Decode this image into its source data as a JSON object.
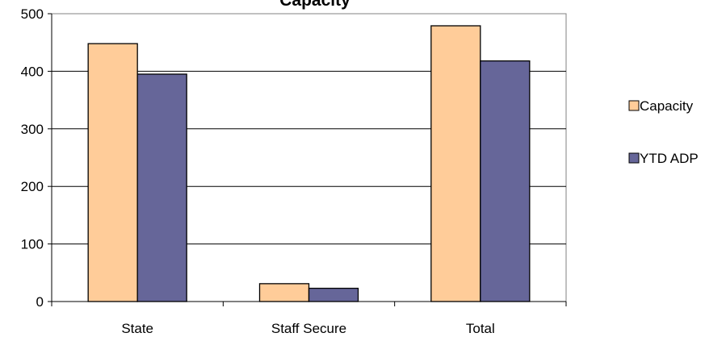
{
  "chart_data": {
    "type": "bar",
    "title": "Capacity",
    "xlabel": "",
    "ylabel": "",
    "categories": [
      "State",
      "Staff Secure",
      "Total"
    ],
    "series": [
      {
        "name": "Capacity",
        "values": [
          448,
          31,
          479
        ],
        "color": "#ffcc99"
      },
      {
        "name": "YTD ADP",
        "values": [
          395,
          23,
          418
        ],
        "color": "#666699"
      }
    ],
    "ylim": [
      0,
      500
    ],
    "yticks": [
      "0",
      "100",
      "200",
      "300",
      "400",
      "500"
    ],
    "grid": true,
    "legend_position": "right"
  }
}
